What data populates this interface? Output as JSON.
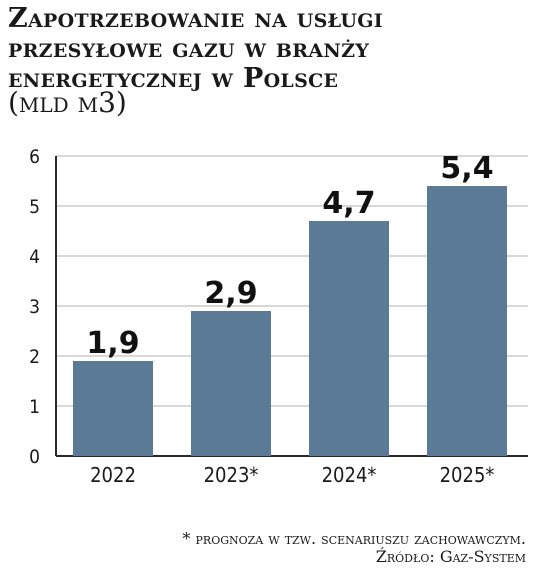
{
  "header": {
    "title": "Zapotrzebowanie na usługi przesyłowe gazu w branży energetycznej w Polsce",
    "unit": "(mld m3)"
  },
  "chart_data": {
    "type": "bar",
    "categories": [
      "2022",
      "2023*",
      "2024*",
      "2025*"
    ],
    "values": [
      1.9,
      2.9,
      4.7,
      5.4
    ],
    "value_labels": [
      "1,9",
      "2,9",
      "4,7",
      "5,4"
    ],
    "yticks": [
      "0",
      "1",
      "2",
      "3",
      "4",
      "5",
      "6"
    ],
    "ylim": [
      0,
      6
    ],
    "grid": true,
    "bar_color": "#5b7a95",
    "grid_color": "#b0b0b0"
  },
  "footer": {
    "note": "* prognoza w tzw. scenariuszu zachowawczym.",
    "source": "Źródło: Gaz-System"
  }
}
